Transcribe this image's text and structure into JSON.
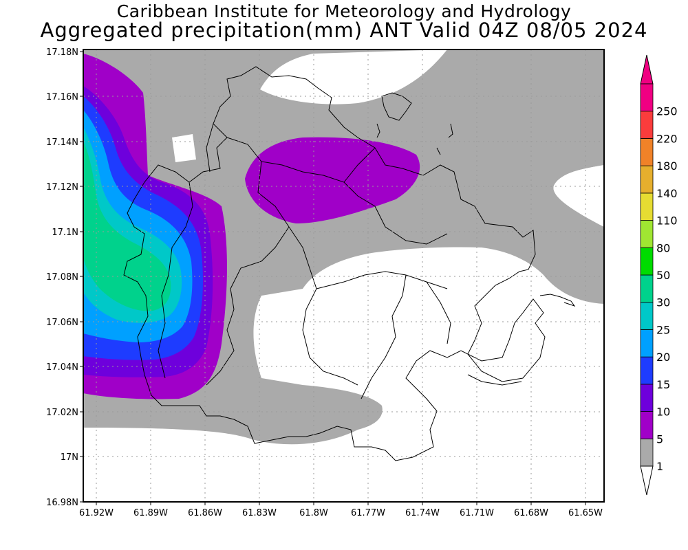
{
  "header": {
    "line1": "Caribbean Institute for Meteorology and Hydrology",
    "line2": "Aggregated precipitation(mm) ANT Valid 04Z 08/05 2024"
  },
  "map": {
    "lat_range": [
      16.98,
      17.18
    ],
    "lon_range": [
      -61.93,
      -61.645
    ],
    "lat_ticks": [
      "17.18N",
      "17.16N",
      "17.14N",
      "17.12N",
      "17.1N",
      "17.08N",
      "17.06N",
      "17.04N",
      "17.02N",
      "17N",
      "16.98N"
    ],
    "lon_ticks": [
      "61.92W",
      "61.89W",
      "61.86W",
      "61.83W",
      "61.8W",
      "61.77W",
      "61.74W",
      "61.71W",
      "61.68W",
      "61.65W"
    ],
    "grid": true
  },
  "colorbar": {
    "levels": [
      "1",
      "5",
      "10",
      "15",
      "20",
      "25",
      "30",
      "50",
      "80",
      "110",
      "140",
      "180",
      "220",
      "250"
    ],
    "colors": [
      "#aaaaaa",
      "#a000c8",
      "#6e00dc",
      "#1e3cff",
      "#00a0ff",
      "#00c8c8",
      "#00d28c",
      "#00dc00",
      "#a0e632",
      "#e6dc32",
      "#e6af2d",
      "#f08228",
      "#fa3c3c",
      "#f00082"
    ],
    "extend_low_color": "#ffffff",
    "extend_high_color": "#f00082"
  }
}
